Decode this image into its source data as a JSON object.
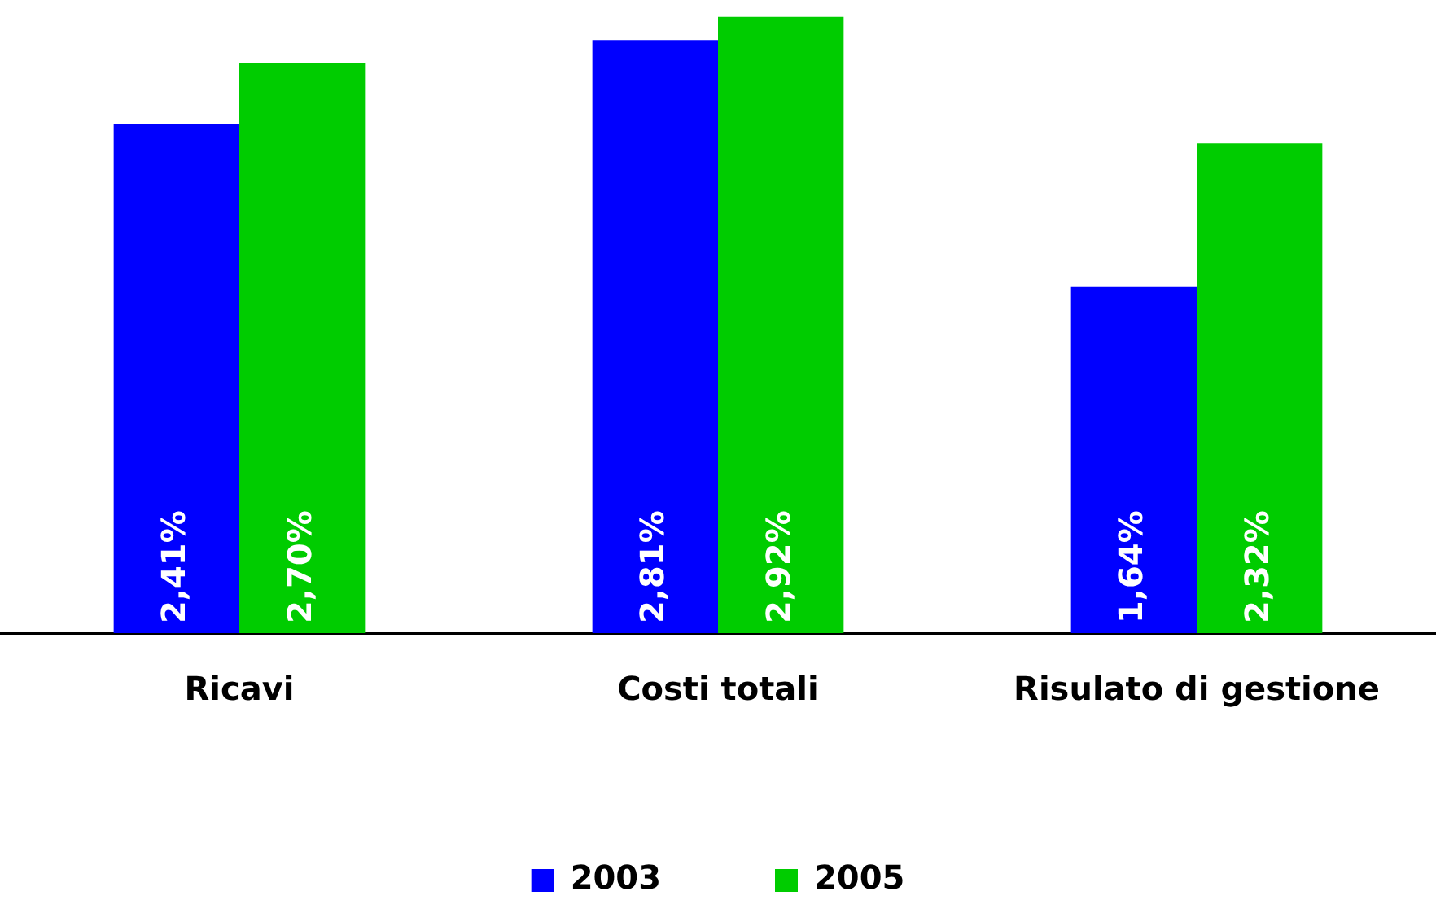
{
  "chart_data": {
    "type": "bar",
    "categories": [
      "Ricavi",
      "Costi totali",
      "Risulato di gestione"
    ],
    "series": [
      {
        "name": "2003",
        "color": "#0000ff",
        "values": [
          2.41,
          2.81,
          1.64
        ],
        "value_labels": [
          "2,41%",
          "2,81%",
          "1,64%"
        ]
      },
      {
        "name": "2005",
        "color": "#00cc00",
        "values": [
          2.7,
          2.92,
          2.32
        ],
        "value_labels": [
          "2,70%",
          "2,92%",
          "2,32%"
        ]
      }
    ],
    "tick_labels": "x",
    "grid": false,
    "legend": "bottom"
  }
}
